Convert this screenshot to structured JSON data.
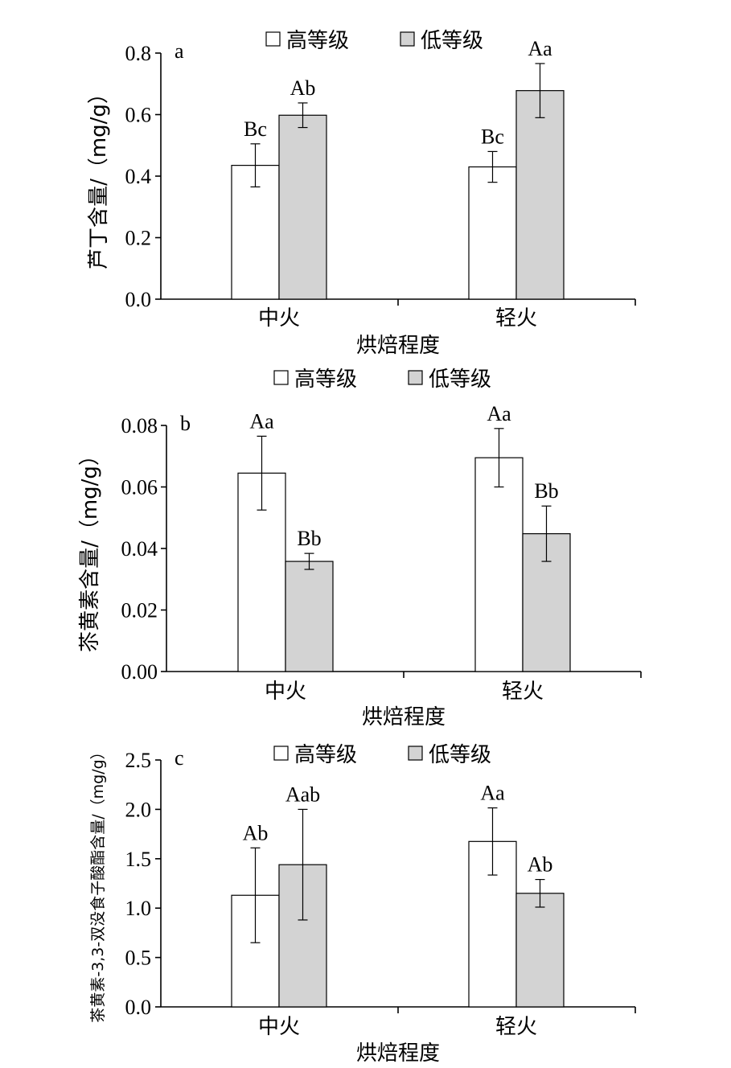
{
  "colors": {
    "high": "#ffffff",
    "low": "#d3d3d3",
    "stroke": "#000000"
  },
  "chart_data": [
    {
      "type": "bar",
      "panel": "a",
      "categories": [
        "中火",
        "轻火"
      ],
      "xlabel": "烘焙程度",
      "ylabel": "芦丁含量/（mg/g）",
      "ylim": [
        0,
        0.8
      ],
      "yticks": [
        "0.0",
        "0.2",
        "0.4",
        "0.6",
        "0.8"
      ],
      "series": [
        {
          "name": "高等级",
          "values": [
            0.435,
            0.43
          ],
          "errors": [
            0.07,
            0.05
          ],
          "labels": [
            "Bc",
            "Bc"
          ]
        },
        {
          "name": "低等级",
          "values": [
            0.598,
            0.678
          ],
          "errors": [
            0.04,
            0.088
          ],
          "labels": [
            "Ab",
            "Aa"
          ]
        }
      ]
    },
    {
      "type": "bar",
      "panel": "b",
      "categories": [
        "中火",
        "轻火"
      ],
      "xlabel": "烘焙程度",
      "ylabel": "苶黄素含量/（mg/g）",
      "ylim": [
        0,
        0.08
      ],
      "yticks": [
        "0.00",
        "0.02",
        "0.04",
        "0.06",
        "0.08"
      ],
      "series": [
        {
          "name": "高等级",
          "values": [
            0.0645,
            0.0695
          ],
          "errors": [
            0.012,
            0.0095
          ],
          "labels": [
            "Aa",
            "Aa"
          ]
        },
        {
          "name": "低等级",
          "values": [
            0.0358,
            0.0448
          ],
          "errors": [
            0.0026,
            0.009
          ],
          "labels": [
            "Bb",
            "Bb"
          ]
        }
      ]
    },
    {
      "type": "bar",
      "panel": "c",
      "categories": [
        "中火",
        "轻火"
      ],
      "xlabel": "烘焙程度",
      "ylabel": "茶黄素-3,3-双没食子酸酯含量/（mg/g）",
      "ylim": [
        0,
        2.5
      ],
      "yticks": [
        "0.0",
        "0.5",
        "1.0",
        "1.5",
        "2.0",
        "2.5"
      ],
      "series": [
        {
          "name": "高等级",
          "values": [
            1.13,
            1.675
          ],
          "errors": [
            0.48,
            0.34
          ],
          "labels": [
            "Ab",
            "Aa"
          ]
        },
        {
          "name": "低等级",
          "values": [
            1.44,
            1.15
          ],
          "errors": [
            0.56,
            0.14
          ],
          "labels": [
            "Aab",
            "Ab"
          ]
        }
      ]
    }
  ]
}
